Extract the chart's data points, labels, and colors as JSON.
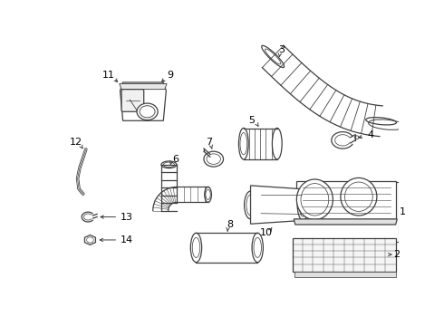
{
  "bg_color": "#ffffff",
  "line_color": "#404040",
  "label_color": "#000000",
  "lw": 0.9
}
